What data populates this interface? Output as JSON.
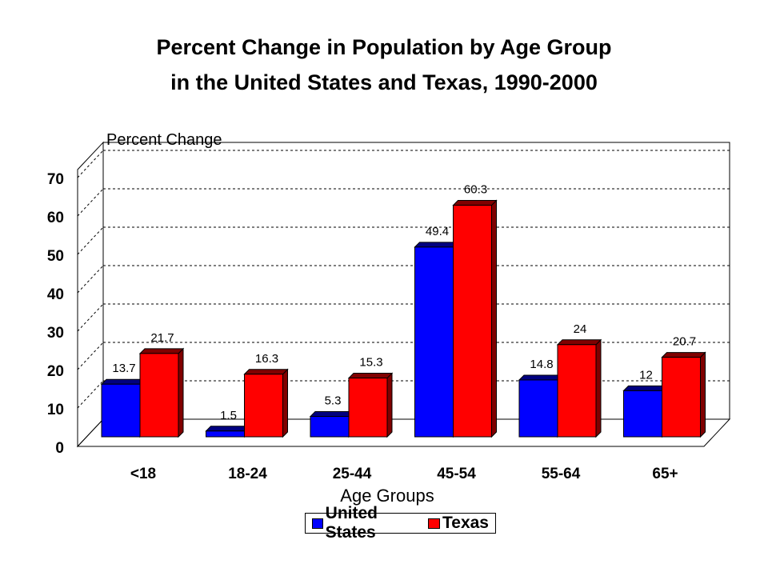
{
  "chart_data": {
    "type": "bar",
    "title_line1": "Percent Change in Population by Age Group",
    "title_line2": "in the United States and Texas, 1990-2000",
    "ylabel": "Percent Change",
    "xlabel": "Age Groups",
    "categories": [
      "<18",
      "18-24",
      "25-44",
      "45-54",
      "55-64",
      "65+"
    ],
    "series": [
      {
        "name": "United States",
        "color": "#0000ff",
        "side_color": "#000080",
        "values": [
          13.7,
          1.5,
          5.3,
          49.4,
          14.8,
          12
        ]
      },
      {
        "name": "Texas",
        "color": "#ff0000",
        "side_color": "#800000",
        "values": [
          21.7,
          16.3,
          15.3,
          60.3,
          24,
          20.7
        ]
      }
    ],
    "ylim": [
      0,
      70
    ],
    "yticks": [
      0,
      10,
      20,
      30,
      40,
      50,
      60,
      70
    ],
    "grid": true,
    "legend_position": "bottom-center",
    "three_d": true
  }
}
